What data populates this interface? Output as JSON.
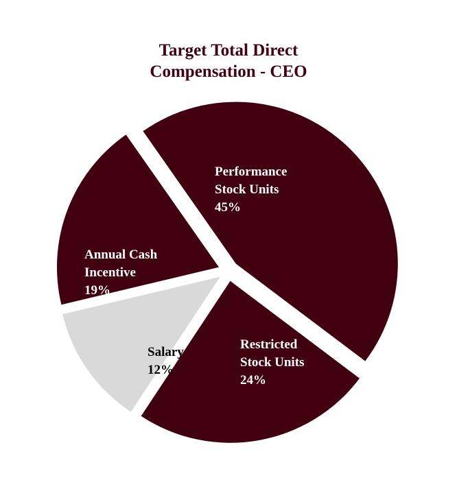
{
  "chart_data": {
    "type": "pie",
    "title_lines": [
      "Target Total Direct",
      "Compensation - CEO"
    ],
    "slices": [
      {
        "label_lines": [
          "Performance",
          "Stock Units"
        ],
        "value": 45,
        "value_label": "45%",
        "color": "#410010",
        "text_color": "#ffffff"
      },
      {
        "label_lines": [
          "Restricted",
          "Stock Units"
        ],
        "value": 24,
        "value_label": "24%",
        "color": "#410010",
        "text_color": "#ffffff"
      },
      {
        "label_lines": [
          "Salary"
        ],
        "value": 12,
        "value_label": "12%",
        "color": "#d9d9d9",
        "text_color": "#000000"
      },
      {
        "label_lines": [
          "Annual Cash",
          "Incentive"
        ],
        "value": 19,
        "value_label": "19%",
        "color": "#410010",
        "text_color": "#ffffff"
      }
    ],
    "title_color": "#410010",
    "exploded": true,
    "legend": "none"
  }
}
